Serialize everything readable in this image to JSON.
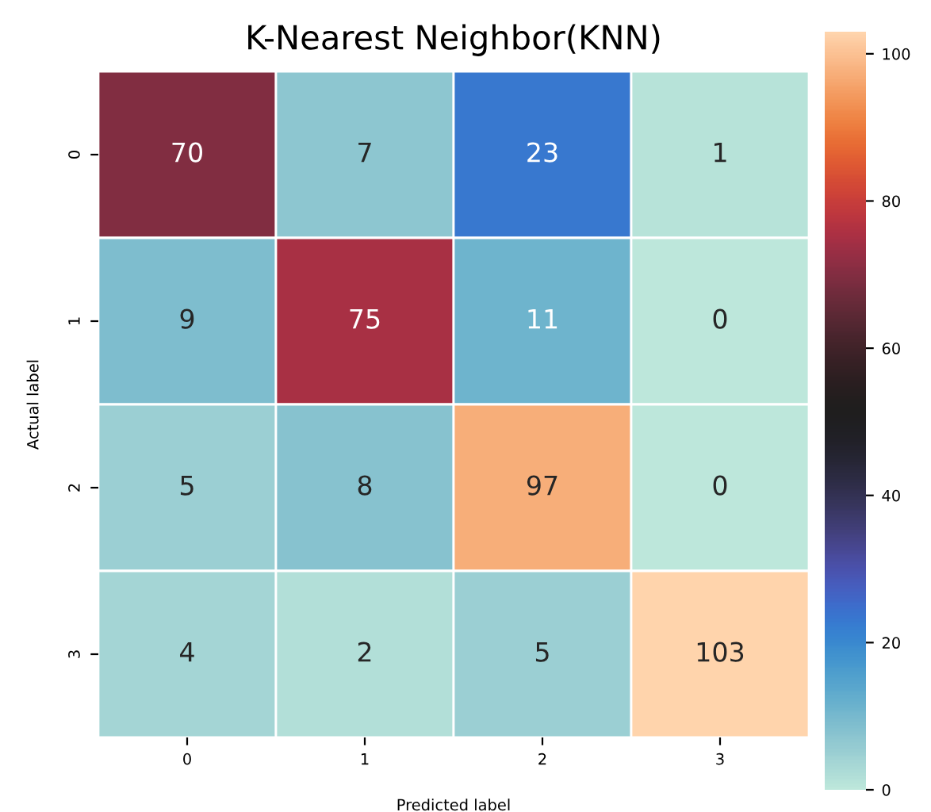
{
  "chart_data": {
    "type": "heatmap",
    "title": "K-Nearest Neighbor(KNN)",
    "xlabel": "Predicted label",
    "ylabel": "Actual label",
    "categories": [
      "0",
      "1",
      "2",
      "3"
    ],
    "y_categories": [
      "0",
      "1",
      "2",
      "3"
    ],
    "cells": [
      [
        70,
        7,
        23,
        1
      ],
      [
        9,
        75,
        11,
        0
      ],
      [
        5,
        8,
        97,
        0
      ],
      [
        4,
        2,
        5,
        103
      ]
    ],
    "clim": [
      0,
      103
    ],
    "cticks": [
      0,
      20,
      40,
      60,
      80,
      100
    ],
    "data_labels": true
  }
}
